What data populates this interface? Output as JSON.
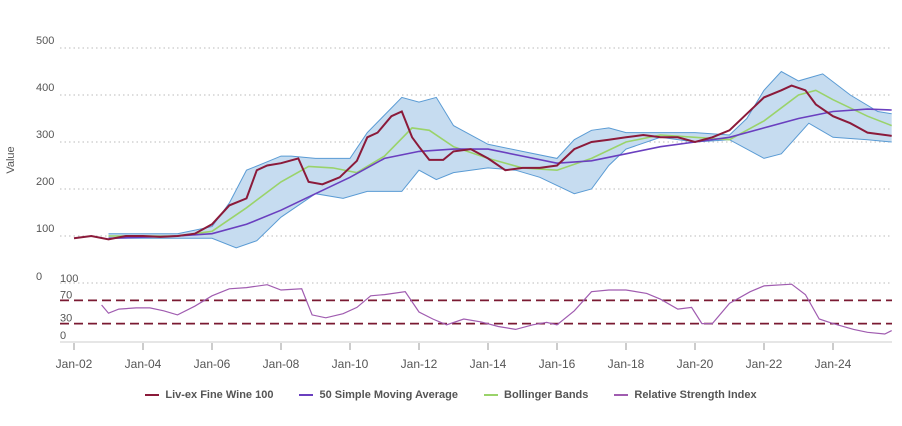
{
  "chart_data": [
    {
      "type": "line",
      "ylabel": "Value",
      "ylim": [
        0,
        500
      ],
      "yticks": [
        "0",
        "100",
        "200",
        "300",
        "400",
        "500"
      ],
      "grid": true,
      "series": [
        {
          "name": "Liv-ex Fine Wine 100",
          "color": "#8b1a3a",
          "x": [
            2002.0,
            2002.5,
            2003.0,
            2003.5,
            2004,
            2004.5,
            2005,
            2005.5,
            2006,
            2006.5,
            2007.0,
            2007.3,
            2007.6,
            2008,
            2008.5,
            2008.8,
            2009.2,
            2009.7,
            2010.2,
            2010.5,
            2010.8,
            2011.2,
            2011.5,
            2011.8,
            2012.0,
            2012.3,
            2012.7,
            2013.0,
            2013.5,
            2014,
            2014.5,
            2015,
            2015.5,
            2016,
            2016.5,
            2017,
            2017.5,
            2018,
            2018.5,
            2019,
            2019.5,
            2020,
            2020.5,
            2021,
            2021.5,
            2022,
            2022.5,
            2022.8,
            2023.2,
            2023.5,
            2024,
            2024.5,
            2025,
            2025.7
          ],
          "y": [
            95,
            100,
            93,
            100,
            100,
            98,
            100,
            105,
            125,
            165,
            180,
            240,
            250,
            255,
            265,
            215,
            210,
            225,
            260,
            310,
            320,
            355,
            365,
            310,
            290,
            262,
            262,
            280,
            285,
            265,
            240,
            245,
            245,
            250,
            285,
            300,
            305,
            310,
            315,
            310,
            310,
            300,
            310,
            325,
            360,
            395,
            410,
            420,
            410,
            380,
            355,
            340,
            320,
            313
          ]
        },
        {
          "name": "50 Simple Moving Average",
          "color": "#6a3fbf",
          "x": [
            2003,
            2005,
            2006,
            2007,
            2008,
            2009,
            2010,
            2011,
            2012,
            2013,
            2014,
            2015,
            2016,
            2017,
            2018,
            2019,
            2020,
            2021,
            2022,
            2023,
            2024,
            2025,
            2025.7
          ],
          "y": [
            95,
            100,
            105,
            125,
            155,
            190,
            225,
            265,
            280,
            285,
            285,
            270,
            255,
            260,
            275,
            290,
            300,
            310,
            330,
            350,
            365,
            370,
            368
          ]
        },
        {
          "name": "Bollinger Bands",
          "color": "#9ad36a",
          "x": [
            2003,
            2005,
            2006,
            2007,
            2008,
            2008.8,
            2009.5,
            2010.2,
            2011,
            2011.8,
            2012.3,
            2013,
            2014,
            2015,
            2016,
            2017,
            2018,
            2019,
            2020,
            2021,
            2022,
            2023,
            2023.5,
            2024,
            2025,
            2025.7
          ],
          "y": [
            100,
            100,
            110,
            160,
            215,
            248,
            245,
            235,
            270,
            330,
            325,
            290,
            265,
            245,
            240,
            265,
            300,
            315,
            310,
            305,
            345,
            400,
            410,
            390,
            355,
            335
          ],
          "upper": {
            "x": [
              2003,
              2005,
              2006,
              2006.5,
              2007,
              2007.5,
              2008,
              2008.3,
              2009,
              2010,
              2010.5,
              2011.5,
              2012,
              2012.5,
              2013,
              2014,
              2015,
              2016,
              2016.5,
              2017,
              2017.5,
              2018,
              2019,
              2020,
              2021,
              2021.5,
              2022,
              2022.5,
              2023,
              2023.7,
              2024.5,
              2025.3,
              2025.7
            ],
            "y": [
              105,
              105,
              120,
              170,
              240,
              255,
              270,
              270,
              265,
              265,
              320,
              395,
              385,
              395,
              335,
              295,
              280,
              265,
              305,
              325,
              330,
              320,
              320,
              320,
              315,
              350,
              410,
              450,
              430,
              445,
              400,
              365,
              360
            ]
          },
          "lower": {
            "x": [
              2003,
              2005,
              2006,
              2006.7,
              2007.3,
              2008,
              2009,
              2009.8,
              2010.5,
              2011.5,
              2012,
              2012.5,
              2013,
              2014,
              2014.8,
              2015.5,
              2016.5,
              2017,
              2017.5,
              2018,
              2019,
              2020,
              2021,
              2022,
              2022.5,
              2023.3,
              2024,
              2025,
              2025.7
            ],
            "y": [
              95,
              95,
              95,
              75,
              90,
              140,
              190,
              180,
              195,
              195,
              240,
              220,
              235,
              245,
              240,
              225,
              190,
              200,
              250,
              285,
              310,
              300,
              305,
              265,
              275,
              340,
              310,
              305,
              300
            ]
          }
        }
      ]
    },
    {
      "type": "line",
      "ylim": [
        0,
        100
      ],
      "yticks": [
        "0",
        "30",
        "70",
        "100"
      ],
      "reference_lines": [
        70,
        30
      ],
      "reference_color": "#7a1a32",
      "series": [
        {
          "name": "Relative Strength Index",
          "color": "#a05cb0",
          "x": [
            2002.8,
            2003.0,
            2003.3,
            2003.8,
            2004.2,
            2004.6,
            2005.0,
            2005.5,
            2006.0,
            2006.5,
            2007.0,
            2007.6,
            2008.0,
            2008.6,
            2008.9,
            2009.3,
            2009.8,
            2010.2,
            2010.6,
            2011.0,
            2011.6,
            2012.0,
            2012.4,
            2012.8,
            2013.3,
            2013.8,
            2014.3,
            2014.8,
            2015.3,
            2015.7,
            2016.0,
            2016.5,
            2017.0,
            2017.5,
            2018.0,
            2018.6,
            2019.0,
            2019.5,
            2019.9,
            2020.2,
            2020.5,
            2021.0,
            2021.6,
            2022.0,
            2022.8,
            2023.2,
            2023.6,
            2024.0,
            2024.6,
            2025.0,
            2025.5,
            2025.7
          ],
          "y": [
            62,
            48,
            55,
            57,
            57,
            52,
            45,
            60,
            78,
            90,
            92,
            97,
            88,
            90,
            45,
            40,
            47,
            58,
            78,
            80,
            85,
            50,
            38,
            28,
            38,
            33,
            25,
            20,
            28,
            32,
            28,
            52,
            85,
            88,
            88,
            82,
            72,
            55,
            58,
            30,
            30,
            65,
            85,
            95,
            98,
            80,
            38,
            30,
            20,
            15,
            12,
            18
          ]
        }
      ]
    }
  ],
  "xaxis": {
    "ticks": [
      "Jan-02",
      "Jan-04",
      "Jan-06",
      "Jan-08",
      "Jan-10",
      "Jan-12",
      "Jan-14",
      "Jan-16",
      "Jan-18",
      "Jan-20",
      "Jan-22",
      "Jan-24"
    ],
    "tick_years": [
      2002,
      2004,
      2006,
      2008,
      2010,
      2012,
      2014,
      2016,
      2018,
      2020,
      2022,
      2024
    ]
  },
  "legend": {
    "placement": "bottom",
    "items": [
      {
        "label": "Liv-ex Fine Wine 100",
        "color": "#8b1a3a"
      },
      {
        "label": "50 Simple Moving Average",
        "color": "#6a3fbf"
      },
      {
        "label": "Bollinger Bands",
        "color": "#9ad36a"
      },
      {
        "label": "Relative Strength Index",
        "color": "#a05cb0"
      }
    ]
  },
  "band_fill": "#c6dcf0",
  "band_stroke": "#5a9bd4"
}
